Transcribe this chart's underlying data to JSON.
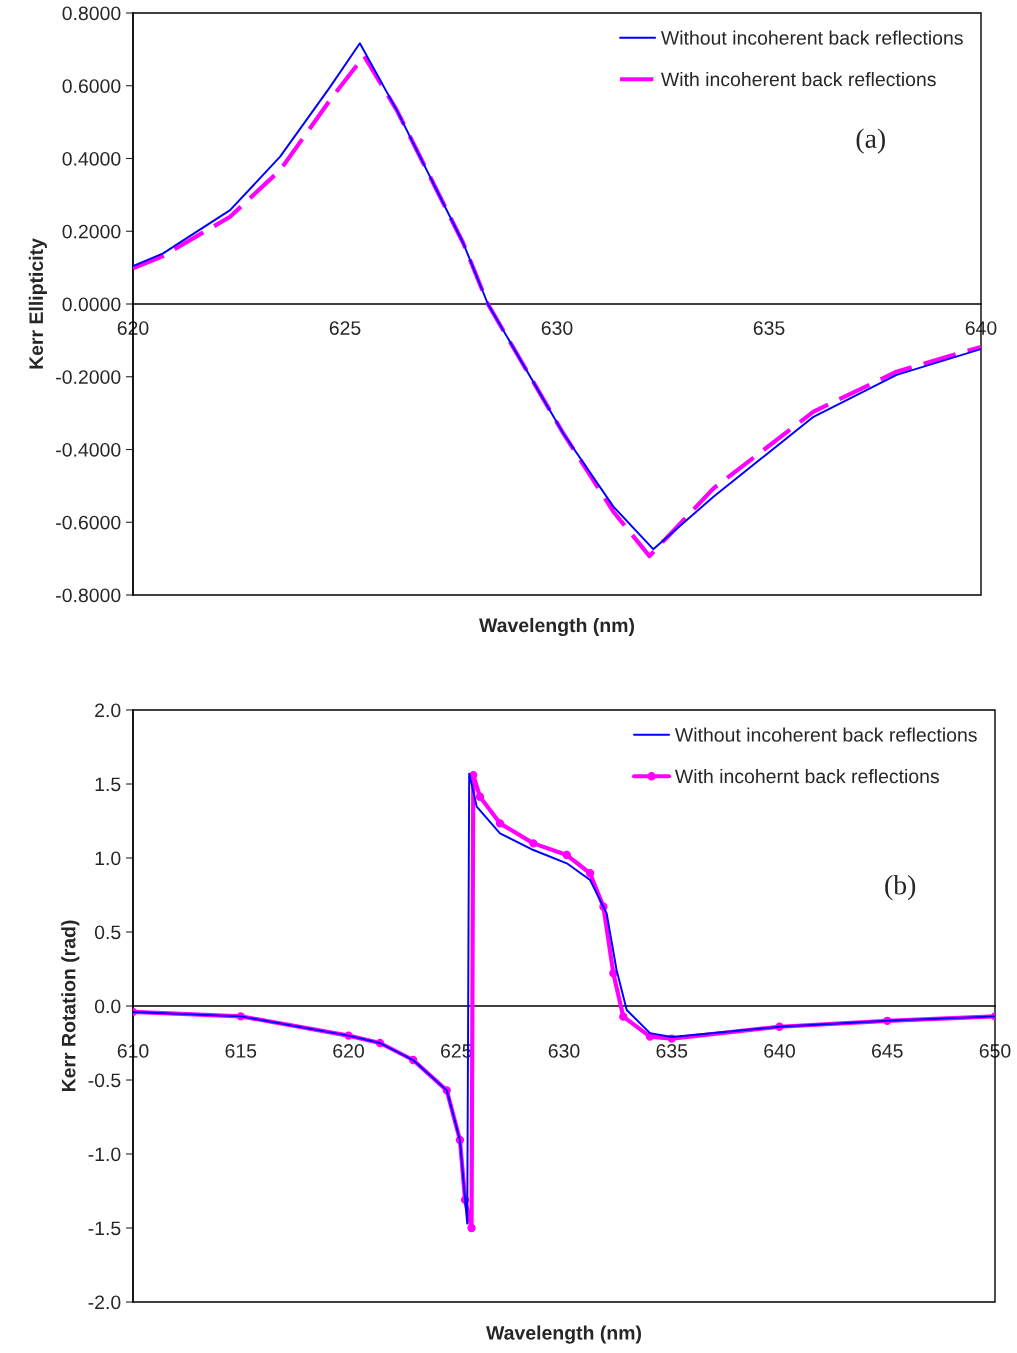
{
  "chart_data": [
    {
      "type": "line",
      "xlabel": "Wavelength (nm)",
      "ylabel": "Kerr Ellipticity",
      "annotations": [
        "(a)"
      ],
      "xlim": [
        620,
        640
      ],
      "xticks": [
        620,
        625,
        630,
        635,
        640
      ],
      "ylim": [
        -0.8,
        0.8
      ],
      "yticks": [
        {
          "value": -0.8,
          "label": "-0.8000"
        },
        {
          "value": -0.6,
          "label": "-0.6000"
        },
        {
          "value": -0.4,
          "label": "-0.4000"
        },
        {
          "value": -0.2,
          "label": "-0.2000"
        },
        {
          "value": 0,
          "label": "0.0000"
        },
        {
          "value": 0.2,
          "label": "0.2000"
        },
        {
          "value": 0.4,
          "label": "0.4000"
        },
        {
          "value": 0.6,
          "label": "0.6000"
        },
        {
          "value": 0.8,
          "label": "0.8000"
        }
      ],
      "grid": false,
      "legend": "top right",
      "marker": "none",
      "series": [
        {
          "name": "Without incoherent back reflections",
          "color": "#0000ff",
          "line_style": "solid",
          "x": [
            620,
            620.71,
            622.29,
            623.47,
            624.65,
            625.35,
            626.22,
            627.79,
            628.37,
            630.15,
            631.33,
            632.27,
            633.69,
            636.05,
            638.01,
            640
          ],
          "values": [
            0.104,
            0.139,
            0.258,
            0.405,
            0.597,
            0.717,
            0.533,
            0.167,
            0.0,
            -0.356,
            -0.557,
            -0.674,
            -0.53,
            -0.31,
            -0.195,
            -0.124
          ]
        },
        {
          "name": "With incoherent back reflections",
          "color": "#ff00ff",
          "line_style": "dashed",
          "x": [
            620,
            620.71,
            622.29,
            623.47,
            624.65,
            625.45,
            626.22,
            627.79,
            628.37,
            630.15,
            631.33,
            632.18,
            633.69,
            636.05,
            638.01,
            640
          ],
          "values": [
            0.098,
            0.132,
            0.24,
            0.368,
            0.561,
            0.682,
            0.533,
            0.167,
            0.0,
            -0.356,
            -0.571,
            -0.693,
            -0.507,
            -0.296,
            -0.186,
            -0.118
          ]
        }
      ]
    },
    {
      "type": "line",
      "xlabel": "Wavelength (nm)",
      "ylabel": "Kerr Rotation (rad)",
      "annotations": [
        "(b)"
      ],
      "xlim": [
        610,
        650
      ],
      "xticks": [
        610,
        615,
        620,
        625,
        630,
        635,
        640,
        645,
        650
      ],
      "ylim": [
        -2.0,
        2.0
      ],
      "yticks": [
        {
          "value": -2,
          "label": "-2.0"
        },
        {
          "value": -1.5,
          "label": "-1.5"
        },
        {
          "value": -1,
          "label": "-1.0"
        },
        {
          "value": -0.5,
          "label": "-0.5"
        },
        {
          "value": 0,
          "label": "0.0"
        },
        {
          "value": 0.5,
          "label": "0.5"
        },
        {
          "value": 1,
          "label": "1.0"
        },
        {
          "value": 1.5,
          "label": "1.5"
        },
        {
          "value": 2,
          "label": "2.0"
        }
      ],
      "grid": false,
      "legend": "top right",
      "series": [
        {
          "name": "Without incoherent back reflections",
          "color": "#0000ff",
          "marker": "none",
          "x": [
            610,
            615,
            620,
            621.46,
            623.0,
            624.56,
            625.17,
            625.41,
            625.51,
            625.6,
            625.95,
            627.03,
            628.58,
            630.13,
            631.21,
            631.98,
            632.44,
            632.91,
            633.99,
            635,
            640,
            645,
            650
          ],
          "values": [
            -0.04,
            -0.07,
            -0.2,
            -0.25,
            -0.365,
            -0.57,
            -0.905,
            -1.31,
            -1.47,
            1.57,
            1.347,
            1.167,
            1.054,
            0.964,
            0.851,
            0.626,
            0.243,
            -0.027,
            -0.183,
            -0.21,
            -0.14,
            -0.1,
            -0.07
          ]
        },
        {
          "name": "With incohernt back reflections",
          "color": "#ff00ff",
          "marker": "circle",
          "x": [
            610,
            615,
            620,
            621.46,
            623.0,
            624.56,
            625.17,
            625.41,
            625.71,
            625.79,
            626.1,
            627.03,
            628.58,
            630.13,
            631.21,
            631.83,
            632.29,
            632.75,
            633.99,
            635,
            640,
            645,
            650
          ],
          "values": [
            -0.04,
            -0.07,
            -0.2,
            -0.25,
            -0.365,
            -0.57,
            -0.905,
            -1.31,
            -1.5,
            1.56,
            1.414,
            1.234,
            1.099,
            1.02,
            0.897,
            0.671,
            0.221,
            -0.072,
            -0.207,
            -0.22,
            -0.14,
            -0.1,
            -0.07
          ]
        }
      ]
    }
  ]
}
